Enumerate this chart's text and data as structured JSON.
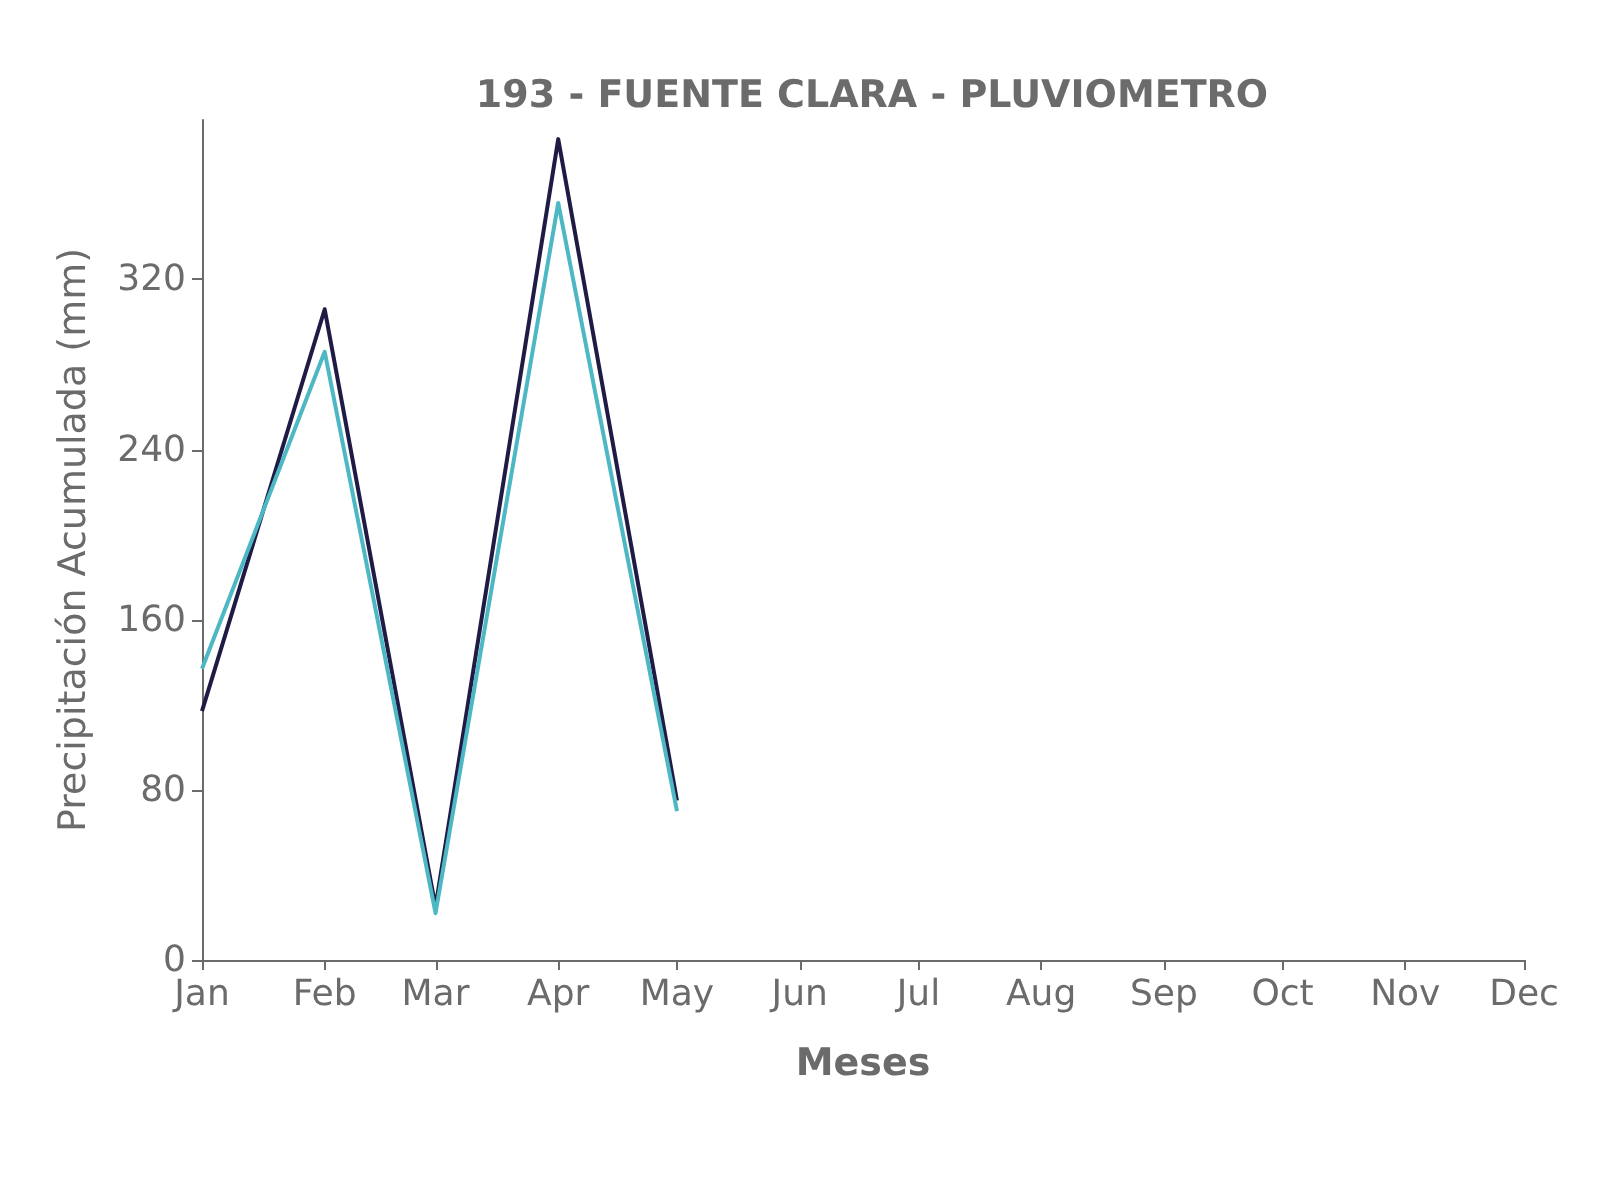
{
  "chart_data": {
    "type": "line",
    "title": "193 - FUENTE CLARA - PLUVIOMETRO",
    "xlabel": "Meses",
    "ylabel": "Precipitación Acumulada (mm)",
    "x": [
      "--01-01",
      "--02-01",
      "--03-01",
      "--04-01",
      "--05-01"
    ],
    "series": [
      {
        "color": "#1f1b45",
        "values": [
          117,
          306,
          25,
          386,
          75
        ]
      },
      {
        "color": "#4db8c4",
        "values": [
          137,
          286,
          22,
          356,
          70
        ]
      }
    ],
    "xlim": [
      "--01-01",
      "--12-01"
    ],
    "xticks": [
      {
        "value": "--01-01",
        "label": "Jan"
      },
      {
        "value": "--02-01",
        "label": "Feb"
      },
      {
        "value": "--03-01",
        "label": "Mar"
      },
      {
        "value": "--04-01",
        "label": "Apr"
      },
      {
        "value": "--05-01",
        "label": "May"
      },
      {
        "value": "--06-01",
        "label": "Jun"
      },
      {
        "value": "--07-01",
        "label": "Jul"
      },
      {
        "value": "--08-01",
        "label": "Aug"
      },
      {
        "value": "--09-01",
        "label": "Sep"
      },
      {
        "value": "--10-01",
        "label": "Oct"
      },
      {
        "value": "--11-01",
        "label": "Nov"
      },
      {
        "value": "--12-01",
        "label": "Dec"
      }
    ],
    "ylim": [
      0,
      395
    ],
    "yticks": [
      0,
      80,
      160,
      240,
      320
    ],
    "grid": false,
    "marker": "none",
    "line_style": "solid"
  }
}
